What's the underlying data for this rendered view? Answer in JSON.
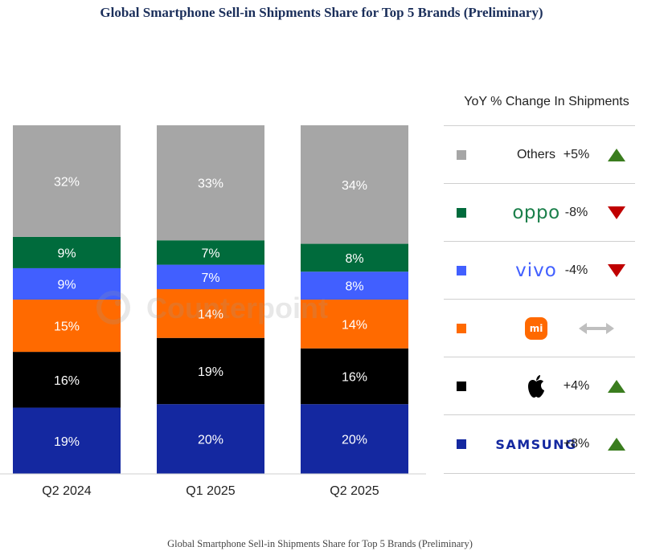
{
  "title": "Global Smartphone Sell-in Shipments Share for Top 5 Brands (Preliminary)",
  "caption": "Global Smartphone Sell-in Shipments Share for Top 5 Brands (Preliminary)",
  "watermark": "Counterpoint",
  "colors": {
    "Others": "#a6a6a6",
    "OPPO": "#006b3c",
    "vivo": "#415fff",
    "Xiaomi": "#ff6a00",
    "Apple": "#000000",
    "Samsung": "#1428a0",
    "up": "#3a7d1e",
    "down": "#c00000",
    "flat": "#bfbfbf"
  },
  "chart_data": {
    "type": "bar",
    "stacked": true,
    "categories": [
      "Q2 2024",
      "Q1 2025",
      "Q2 2025"
    ],
    "series": [
      {
        "name": "Samsung",
        "values": [
          19,
          20,
          20
        ],
        "labels": [
          "19%",
          "20%",
          "20%"
        ]
      },
      {
        "name": "Apple",
        "values": [
          16,
          19,
          16
        ],
        "labels": [
          "16%",
          "19%",
          "16%"
        ]
      },
      {
        "name": "Xiaomi",
        "values": [
          15,
          14,
          14
        ],
        "labels": [
          "15%",
          "14%",
          "14%"
        ]
      },
      {
        "name": "vivo",
        "values": [
          9,
          7,
          8
        ],
        "labels": [
          "9%",
          "7%",
          "8%"
        ]
      },
      {
        "name": "OPPO",
        "values": [
          9,
          7,
          8
        ],
        "labels": [
          "9%",
          "7%",
          "8%"
        ]
      },
      {
        "name": "Others",
        "values": [
          32,
          33,
          34
        ],
        "labels": [
          "32%",
          "33%",
          "34%"
        ]
      }
    ],
    "ylim": [
      0,
      100
    ],
    "grid": false,
    "legend_position": "right"
  },
  "legend": {
    "title": "YoY % Change In Shipments",
    "items": [
      {
        "key": "Others",
        "brand": "Others",
        "logo": "text",
        "change": "+5%",
        "trend": "up"
      },
      {
        "key": "OPPO",
        "brand": "oppo",
        "logo": "oppo-wordmark",
        "change": "-8%",
        "trend": "down"
      },
      {
        "key": "vivo",
        "brand": "vivo",
        "logo": "vivo-wordmark",
        "change": "-4%",
        "trend": "down"
      },
      {
        "key": "Xiaomi",
        "brand": "mi",
        "logo": "xiaomi-mi-logo",
        "change": "",
        "trend": "flat"
      },
      {
        "key": "Apple",
        "brand": "",
        "logo": "apple-logo",
        "change": "+4%",
        "trend": "up"
      },
      {
        "key": "Samsung",
        "brand": "SAMSUNG",
        "logo": "samsung-wordmark",
        "change": "+8%",
        "trend": "up"
      }
    ]
  }
}
